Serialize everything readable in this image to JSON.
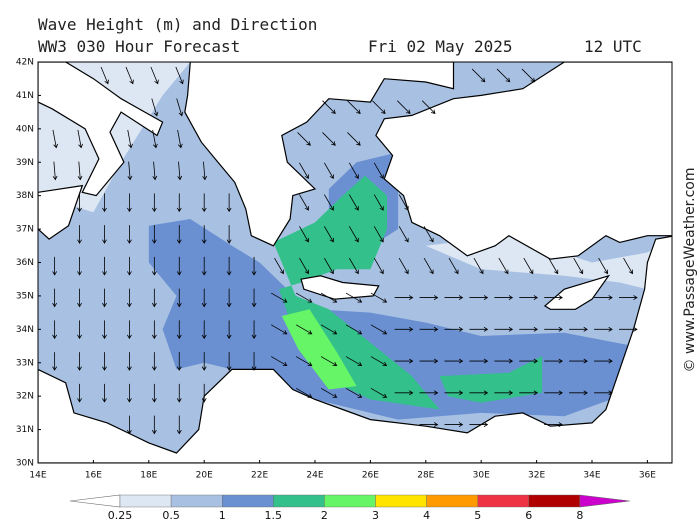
{
  "header": {
    "title": "Wave Height (m) and Direction",
    "model": "WW3 030 Hour Forecast",
    "date": "Fri 02 May 2025",
    "time": "12 UTC"
  },
  "axes": {
    "lat": [
      "42N",
      "41N",
      "40N",
      "39N",
      "38N",
      "37N",
      "36N",
      "35N",
      "34N",
      "33N",
      "32N",
      "31N",
      "30N"
    ],
    "lon": [
      "14E",
      "16E",
      "18E",
      "20E",
      "22E",
      "24E",
      "26E",
      "28E",
      "30E",
      "32E",
      "34E",
      "36E"
    ]
  },
  "legend": {
    "labels": [
      "0.25",
      "0.5",
      "1",
      "1.5",
      "2",
      "3",
      "4",
      "5",
      "6",
      "8"
    ],
    "colors": [
      "#ffffff",
      "#dde6f3",
      "#a8c1e3",
      "#6a90d2",
      "#33c08b",
      "#66f566",
      "#ffe400",
      "#ff9a00",
      "#ee3344",
      "#b00000",
      "#cc00cc"
    ]
  },
  "credit": "© www.PassageWeather.com"
}
